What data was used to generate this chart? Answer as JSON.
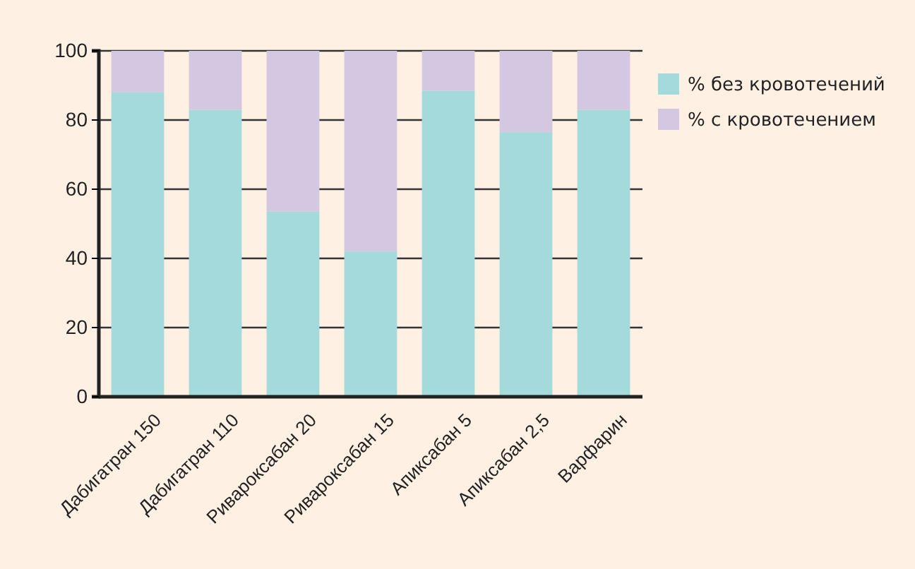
{
  "chart_data": {
    "type": "bar",
    "stacked": true,
    "categories": [
      "Дабигатран 150",
      "Дабигатран 110",
      "Ривароксабан 20",
      "Ривароксабан 15",
      "Апиксабан 5",
      "Апиксабан 2,5",
      "Варфарин"
    ],
    "series": [
      {
        "name": "% без кровотечений",
        "color": "#a4dadc",
        "values": [
          88,
          83,
          53.5,
          42,
          88.5,
          76.5,
          83
        ]
      },
      {
        "name": "% с кровотечением",
        "color": "#d3c7e2",
        "values": [
          12,
          17,
          46.5,
          58,
          11.5,
          23.5,
          17
        ]
      }
    ],
    "ylim": [
      0,
      100
    ],
    "yticks": [
      0,
      20,
      40,
      60,
      80,
      100
    ],
    "grid": "y",
    "legend": "top right"
  }
}
